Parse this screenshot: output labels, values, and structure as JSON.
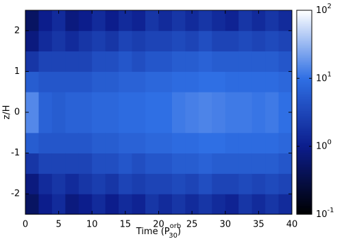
{
  "chart_data": {
    "type": "heatmap",
    "xlabel": {
      "text": "Time (P",
      "sup": "orb",
      "sub": "30",
      "end": ")"
    },
    "ylabel": "z/H",
    "xlim": [
      0,
      40
    ],
    "xticks": [
      0,
      5,
      10,
      15,
      20,
      25,
      30,
      35,
      40
    ],
    "ylim": [
      -2.5,
      2.5
    ],
    "yticks": [
      -2,
      -1,
      0,
      1,
      2
    ],
    "x_edges": [
      0,
      2,
      4,
      6,
      8,
      10,
      12,
      14,
      16,
      18,
      20,
      22,
      24,
      26,
      28,
      30,
      32,
      34,
      36,
      38,
      40
    ],
    "y_edges": [
      -2.5,
      -2,
      -1.5,
      -1,
      -0.5,
      0,
      0.5,
      1,
      1.5,
      2,
      2.5
    ],
    "values": [
      [
        0.5,
        0.8,
        2,
        6,
        15,
        15,
        6,
        2,
        0.8,
        0.5
      ],
      [
        1,
        1.5,
        3,
        5,
        7,
        7,
        5,
        3,
        1.5,
        1
      ],
      [
        1.5,
        2,
        3,
        5,
        6,
        6,
        5,
        3,
        2,
        1.5
      ],
      [
        0.8,
        1.5,
        3,
        5,
        7,
        7,
        5,
        3,
        1.5,
        0.8
      ],
      [
        1,
        2,
        3,
        5,
        7,
        7,
        5,
        3,
        2,
        1
      ],
      [
        1.5,
        2.5,
        4,
        6,
        8,
        8,
        6,
        4,
        2.5,
        1.5
      ],
      [
        1,
        2,
        4,
        6,
        8,
        8,
        6,
        4,
        2,
        1
      ],
      [
        1.5,
        3,
        5,
        7,
        9,
        9,
        7,
        5,
        3,
        1.5
      ],
      [
        1.2,
        2.5,
        4,
        7,
        9,
        9,
        7,
        4,
        2.5,
        1.2
      ],
      [
        2,
        3,
        5,
        8,
        10,
        10,
        8,
        5,
        3,
        2
      ],
      [
        1.5,
        3,
        5,
        8,
        10,
        10,
        8,
        5,
        3,
        1.5
      ],
      [
        2,
        3.5,
        6,
        9,
        12,
        12,
        9,
        6,
        3.5,
        2
      ],
      [
        1.5,
        3,
        6,
        9,
        13,
        13,
        9,
        6,
        3,
        1.5
      ],
      [
        2,
        4,
        7,
        10,
        14,
        14,
        10,
        7,
        4,
        2
      ],
      [
        1.5,
        3,
        6,
        10,
        13,
        13,
        10,
        6,
        3,
        1.5
      ],
      [
        1.2,
        3,
        6,
        9,
        12,
        12,
        9,
        6,
        3,
        1.2
      ],
      [
        2,
        3.5,
        6,
        9,
        12,
        12,
        9,
        6,
        3.5,
        2
      ],
      [
        1.5,
        3,
        6,
        9,
        11,
        11,
        9,
        6,
        3,
        1.5
      ],
      [
        2,
        3.5,
        6,
        9,
        12,
        12,
        9,
        6,
        3.5,
        2
      ],
      [
        1.5,
        3,
        5,
        8,
        10,
        10,
        8,
        5,
        3,
        1.5
      ]
    ],
    "colorbar": {
      "log": true,
      "lim": [
        0.1,
        100
      ],
      "ticks": [
        {
          "value": 0.1,
          "label": "10",
          "exponent": "-1"
        },
        {
          "value": 1,
          "label": "10",
          "exponent": "0"
        },
        {
          "value": 10,
          "label": "10",
          "exponent": "1"
        },
        {
          "value": 100,
          "label": "10",
          "exponent": "2"
        }
      ]
    },
    "colormap": [
      "#000000",
      "#0c1d8c",
      "#2f6fe4",
      "#ffffff"
    ]
  }
}
